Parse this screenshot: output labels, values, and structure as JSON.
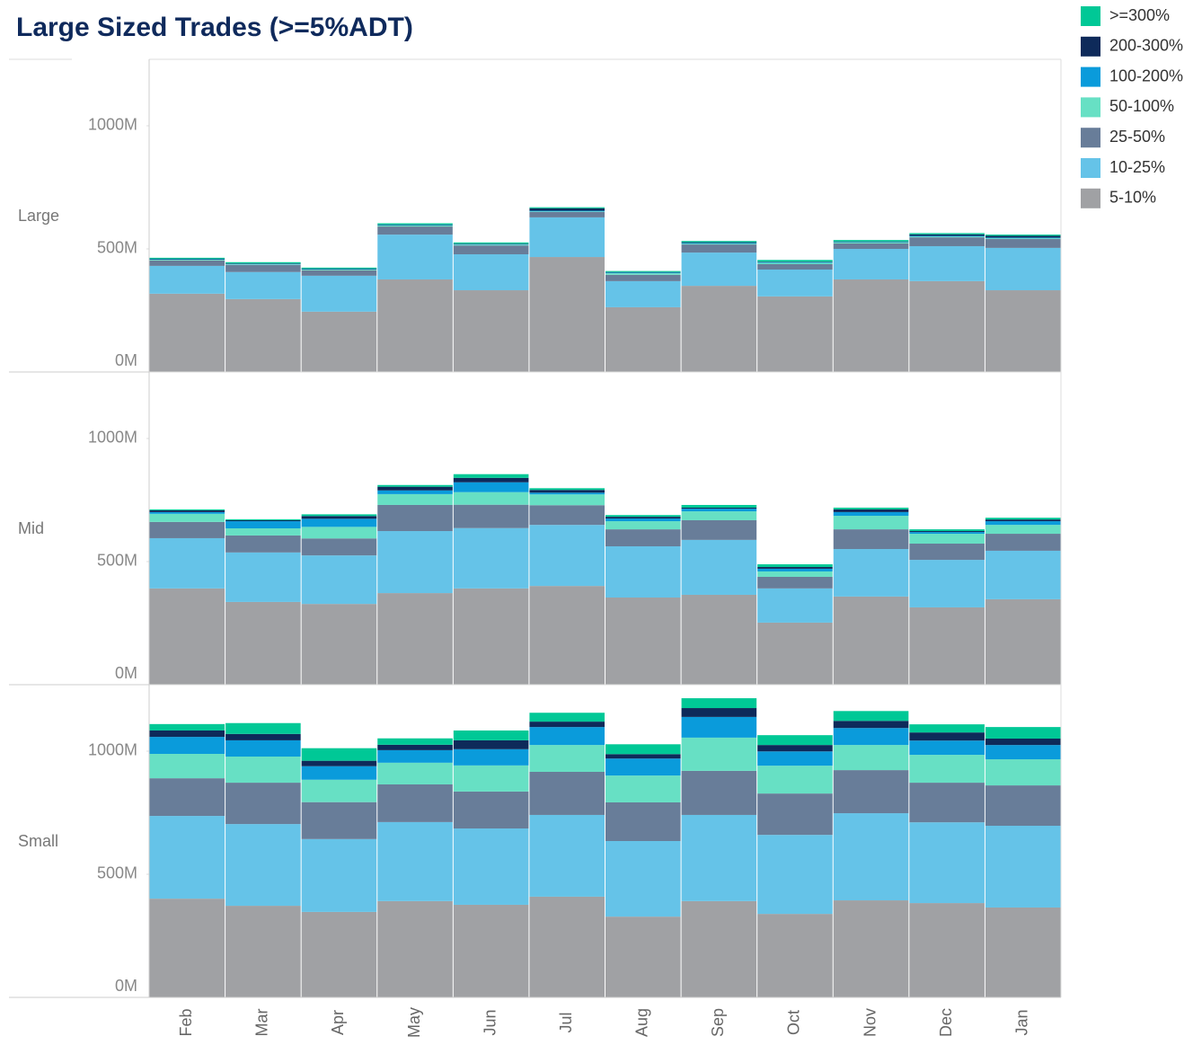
{
  "chart_data": {
    "type": "bar",
    "stacked": true,
    "title": "Large Sized Trades (>=5%ADT)",
    "categories": [
      "Feb",
      "Mar",
      "Apr",
      "May",
      "Jun",
      "Jul",
      "Aug",
      "Sep",
      "Oct",
      "Nov",
      "Dec",
      "Jan"
    ],
    "ylim": [
      0,
      1270
    ],
    "yticks": [
      {
        "value": 0,
        "label": "0M"
      },
      {
        "value": 500,
        "label": "500M"
      },
      {
        "value": 1000,
        "label": "1000M"
      }
    ],
    "series": [
      {
        "name": "5-10%",
        "color": "#a0a1a4"
      },
      {
        "name": "10-25%",
        "color": "#65c3e8"
      },
      {
        "name": "25-50%",
        "color": "#687d99"
      },
      {
        "name": "50-100%",
        "color": "#67e0c4"
      },
      {
        "name": "100-200%",
        "color": "#0a9bdb"
      },
      {
        "name": "200-300%",
        "color": "#0e2a5a"
      },
      {
        "name": ">=300%",
        "color": "#00c896"
      }
    ],
    "panels": [
      {
        "label": "Large",
        "values": [
          [
            318,
            296,
            245,
            376,
            332,
            467,
            263,
            350,
            307,
            376,
            369,
            332
          ],
          [
            113,
            110,
            146,
            182,
            146,
            161,
            106,
            135,
            109,
            124,
            142,
            172
          ],
          [
            22,
            29,
            22,
            33,
            36,
            22,
            26,
            33,
            22,
            22,
            36,
            36
          ],
          [
            3,
            2,
            3,
            4,
            3,
            2,
            6,
            3,
            5,
            4,
            3,
            3
          ],
          [
            2,
            2,
            2,
            2,
            2,
            3,
            3,
            3,
            3,
            2,
            3,
            3
          ],
          [
            2,
            2,
            2,
            2,
            2,
            10,
            2,
            3,
            2,
            2,
            6,
            7
          ],
          [
            4,
            5,
            4,
            5,
            5,
            4,
            4,
            5,
            7,
            6,
            5,
            5
          ]
        ]
      },
      {
        "label": "Mid",
        "values": [
          [
            391,
            336,
            328,
            372,
            391,
            401,
            354,
            365,
            252,
            358,
            314,
            347
          ],
          [
            204,
            201,
            197,
            252,
            245,
            248,
            208,
            223,
            139,
            193,
            193,
            197
          ],
          [
            66,
            69,
            69,
            106,
            95,
            80,
            69,
            80,
            47,
            80,
            66,
            69
          ],
          [
            33,
            29,
            47,
            44,
            51,
            44,
            33,
            36,
            22,
            55,
            40,
            36
          ],
          [
            7,
            29,
            33,
            15,
            40,
            7,
            11,
            11,
            11,
            15,
            7,
            15
          ],
          [
            7,
            4,
            11,
            15,
            18,
            11,
            7,
            4,
            7,
            11,
            4,
            7
          ],
          [
            4,
            4,
            7,
            7,
            15,
            7,
            7,
            11,
            11,
            7,
            7,
            7
          ]
        ]
      },
      {
        "label": "Small",
        "values": [
          [
            401,
            372,
            347,
            391,
            376,
            409,
            328,
            391,
            339,
            394,
            383,
            365
          ],
          [
            336,
            332,
            296,
            321,
            310,
            332,
            307,
            350,
            321,
            354,
            328,
            332
          ],
          [
            153,
            168,
            150,
            153,
            150,
            175,
            157,
            179,
            168,
            175,
            161,
            164
          ],
          [
            99,
            106,
            91,
            88,
            106,
            109,
            109,
            135,
            113,
            102,
            113,
            106
          ],
          [
            69,
            66,
            55,
            51,
            66,
            73,
            69,
            84,
            58,
            69,
            58,
            58
          ],
          [
            26,
            26,
            22,
            22,
            36,
            22,
            18,
            36,
            26,
            29,
            33,
            26
          ],
          [
            26,
            44,
            51,
            26,
            40,
            36,
            40,
            40,
            40,
            40,
            33,
            47
          ]
        ]
      }
    ]
  }
}
